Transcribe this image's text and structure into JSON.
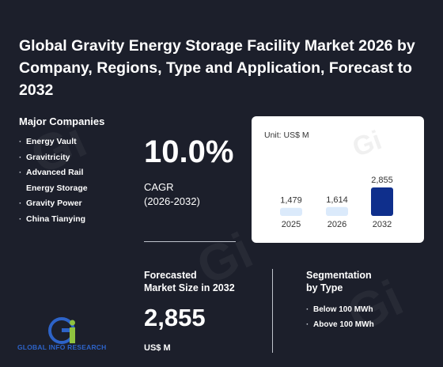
{
  "title": "Global Gravity Energy Storage Facility Market 2026 by Company, Regions, Type and Application, Forecast to 2032",
  "companies": {
    "heading": "Major Companies",
    "items": [
      "Energy Vault",
      "Gravitricity",
      "Advanced Rail",
      "Energy Storage",
      "Gravity Power",
      "China Tianying"
    ]
  },
  "cagr": {
    "value": "10.0%",
    "label_line1": "CAGR",
    "label_line2": "(2026-2032)"
  },
  "forecast": {
    "label_line1": "Forecasted",
    "label_line2": "Market Size in 2032",
    "value": "2,855",
    "unit": "US$ M"
  },
  "segmentation": {
    "heading_line1": "Segmentation",
    "heading_line2": "by Type",
    "items": [
      "Below 100 MWh",
      "Above 100 MWh"
    ]
  },
  "logo": {
    "text": "GLOBAL INFO RESEARCH"
  },
  "colors": {
    "background": "#1c1f2b",
    "bar_light": "#dbeafb",
    "bar_highlight": "#0f2f8c"
  },
  "chart_data": {
    "type": "bar",
    "unit_label": "Unit: US$ M",
    "categories": [
      "2025",
      "2026",
      "2032"
    ],
    "values": [
      1479,
      1614,
      2855
    ],
    "value_labels": [
      "1,479",
      "1,614",
      "2,855"
    ],
    "highlight_index": 2
  }
}
